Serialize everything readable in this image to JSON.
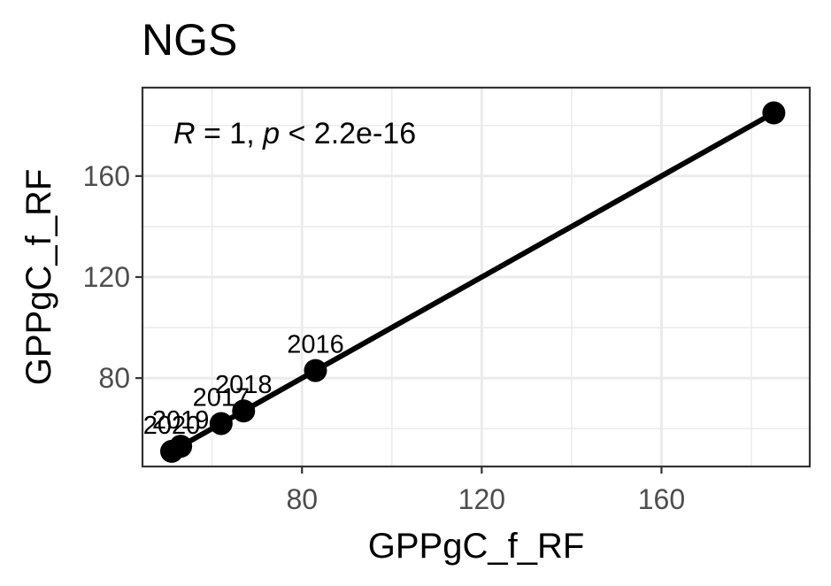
{
  "chart_data": {
    "type": "scatter",
    "title": "NGS",
    "xlabel": "GPPgC_f_RF",
    "ylabel": "GPPgC_f_RF",
    "xlim": [
      44.5,
      193
    ],
    "ylim": [
      45,
      195
    ],
    "x_ticks": [
      80,
      120,
      160
    ],
    "y_ticks": [
      80,
      120,
      160
    ],
    "x_minor": [
      60,
      100,
      140,
      180
    ],
    "y_minor": [
      60,
      100,
      140,
      180
    ],
    "grid": true,
    "annotation": {
      "r_label": "R",
      "r_value": " = 1, ",
      "p_label": "p",
      "p_value": " < 2.2e-16"
    },
    "points": [
      {
        "label": "2020",
        "x": 51,
        "y": 51
      },
      {
        "label": "2019",
        "x": 53,
        "y": 53
      },
      {
        "label": "2017",
        "x": 62,
        "y": 62
      },
      {
        "label": "2018",
        "x": 67,
        "y": 67
      },
      {
        "label": "2016",
        "x": 83,
        "y": 83
      },
      {
        "label": "",
        "x": 185,
        "y": 185
      }
    ],
    "fit_line": {
      "x": [
        51,
        185
      ],
      "y": [
        51,
        185
      ]
    },
    "colors": {
      "point": "#000000",
      "line": "#000000",
      "grid": "#ebebeb",
      "panel_border": "#333333"
    }
  }
}
